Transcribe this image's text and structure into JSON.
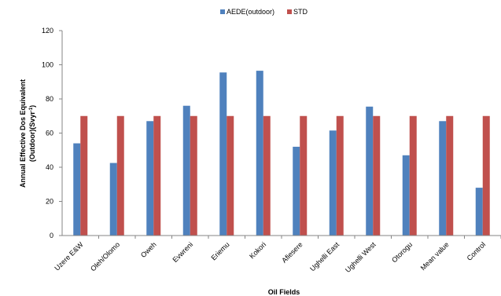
{
  "chart_data": {
    "type": "bar",
    "title": "",
    "xlabel": "Oil Fields",
    "ylabel_line1": "Annual Effective Dos Equivalent",
    "ylabel_line2_main": "(Outdoor)(Svyr",
    "ylabel_line2_sup": "-1",
    "ylabel_line2_end": ")",
    "ylim": [
      0,
      120
    ],
    "yticks": [
      0,
      20,
      40,
      60,
      80,
      100,
      120
    ],
    "legend_position": "top-center",
    "grid": false,
    "categories": [
      "Uzere E&W",
      "Oleh/Olomo",
      "Oweh",
      "Evwreni",
      "Eriemu",
      "Kokori",
      "Afiesere",
      "Ughelli East",
      "Ughelli West",
      "Otorogu",
      "Mean value",
      "Control"
    ],
    "series": [
      {
        "name": "AEDE(outdoor)",
        "color": "#4F81BD",
        "values": [
          54,
          42.5,
          67,
          76,
          95.5,
          96.5,
          52,
          61.5,
          75.5,
          47,
          67,
          28
        ]
      },
      {
        "name": "STD",
        "color": "#C0504D",
        "values": [
          70,
          70,
          70,
          70,
          70,
          70,
          70,
          70,
          70,
          70,
          70,
          70
        ]
      }
    ]
  }
}
